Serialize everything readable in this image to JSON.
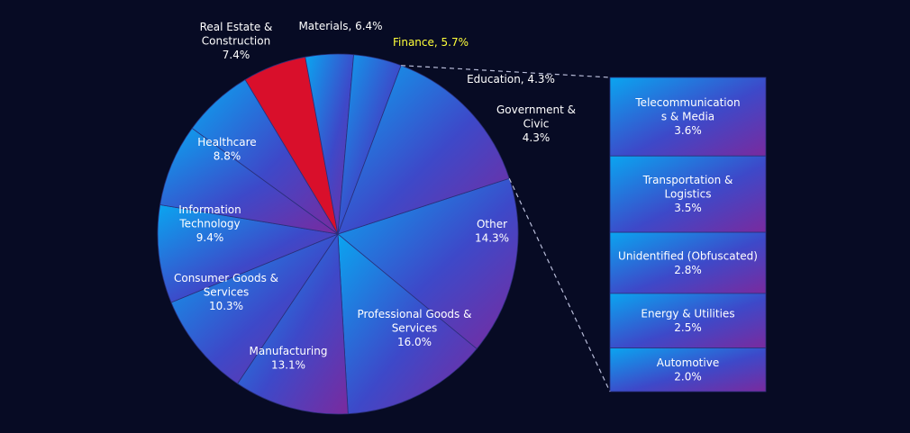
{
  "chart_data": {
    "type": "bar-of-pie",
    "background": "#070b24",
    "slice_gradient": [
      "#0aa5f0",
      "#3d49c9",
      "#7a2a9e"
    ],
    "highlight_color": "#d90f2b",
    "highlight_label_color": "#ffff3a",
    "pie": [
      {
        "label": "Professional Goods & Services",
        "value": 16.0,
        "lines": [
          "Professional Goods &",
          "Services",
          "16.0%"
        ]
      },
      {
        "label": "Manufacturing",
        "value": 13.1,
        "lines": [
          "Manufacturing",
          "13.1%"
        ]
      },
      {
        "label": "Consumer Goods & Services",
        "value": 10.3,
        "lines": [
          "Consumer Goods &",
          "Services",
          "10.3%"
        ]
      },
      {
        "label": "Information Technology",
        "value": 9.4,
        "lines": [
          "Information",
          "Technology",
          "9.4%"
        ]
      },
      {
        "label": "Healthcare",
        "value": 8.8,
        "lines": [
          "Healthcare",
          "8.8%"
        ]
      },
      {
        "label": "Real Estate & Construction",
        "value": 7.4,
        "lines": [
          "Real Estate &",
          "Construction",
          "7.4%"
        ]
      },
      {
        "label": "Materials",
        "value": 6.4,
        "lines": [
          "Materials, 6.4%"
        ]
      },
      {
        "label": "Finance",
        "value": 5.7,
        "lines": [
          "Finance, 5.7%"
        ],
        "highlight": true
      },
      {
        "label": "Education",
        "value": 4.3,
        "lines": [
          "Education, 4.3%"
        ]
      },
      {
        "label": "Government & Civic",
        "value": 4.3,
        "lines": [
          "Government &",
          "Civic",
          "4.3%"
        ]
      },
      {
        "label": "Other",
        "value": 14.3,
        "lines": [
          "Other",
          "14.3%"
        ],
        "breakout": true
      }
    ],
    "bar": [
      {
        "label": "Telecommunications & Media",
        "value": 3.6,
        "lines": [
          "Telecommunication",
          "s & Media",
          "3.6%"
        ]
      },
      {
        "label": "Transportation & Logistics",
        "value": 3.5,
        "lines": [
          "Transportation &",
          "Logistics",
          "3.5%"
        ]
      },
      {
        "label": "Unidentified (Obfuscated)",
        "value": 2.8,
        "lines": [
          "Unidentified (Obfuscated)",
          "2.8%"
        ]
      },
      {
        "label": "Energy & Utilities",
        "value": 2.5,
        "lines": [
          "Energy & Utilities",
          "2.5%"
        ]
      },
      {
        "label": "Automotive",
        "value": 2.0,
        "lines": [
          "Automotive",
          "2.0%"
        ]
      }
    ]
  }
}
